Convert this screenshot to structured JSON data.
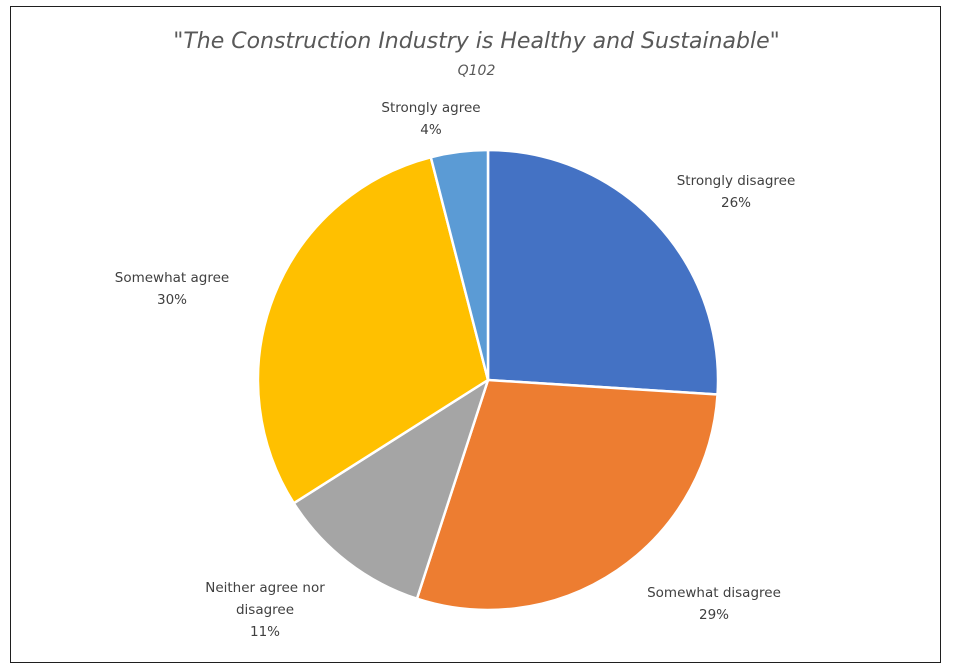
{
  "chart_data": {
    "type": "pie",
    "title": "\"The Construction Industry is Healthy and Sustainable\"",
    "subtitle": "Q102",
    "legend": "none",
    "slices": [
      {
        "label_lines": [
          "Strongly disagree"
        ],
        "value": 26,
        "value_text": "26%",
        "color": "#4472C4"
      },
      {
        "label_lines": [
          "Somewhat disagree"
        ],
        "value": 29,
        "value_text": "29%",
        "color": "#ED7D31"
      },
      {
        "label_lines": [
          "Neither agree nor",
          "disagree"
        ],
        "value": 11,
        "value_text": "11%",
        "color": "#A5A5A5"
      },
      {
        "label_lines": [
          "Somewhat agree"
        ],
        "value": 30,
        "value_text": "30%",
        "color": "#FFC000"
      },
      {
        "label_lines": [
          "Strongly agree"
        ],
        "value": 4,
        "value_text": "4%",
        "color": "#5B9BD5"
      }
    ]
  }
}
